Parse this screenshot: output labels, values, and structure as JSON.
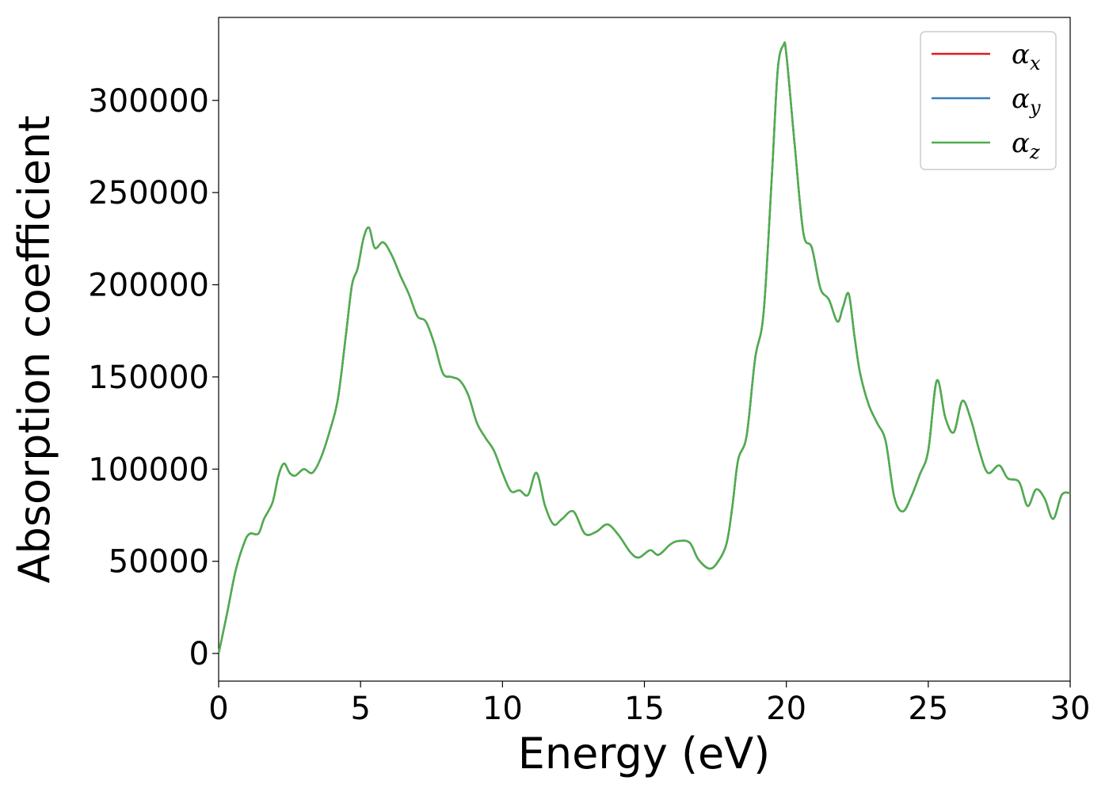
{
  "chart_data": {
    "type": "line",
    "title": "",
    "xlabel": "Energy (eV)",
    "ylabel": "Absorption coefficient",
    "xlim": [
      0,
      30
    ],
    "ylim": [
      -15000,
      345000
    ],
    "xticks": [
      0,
      5,
      10,
      15,
      20,
      25,
      30
    ],
    "yticks": [
      0,
      50000,
      100000,
      150000,
      200000,
      250000,
      300000
    ],
    "xtick_labels": [
      "0",
      "5",
      "10",
      "15",
      "20",
      "25",
      "30"
    ],
    "ytick_labels": [
      "0",
      "50000",
      "100000",
      "150000",
      "200000",
      "250000",
      "300000"
    ],
    "grid": false,
    "legend_position": "top-right",
    "series": [
      {
        "name": "α",
        "subscript": "x",
        "color": "#e41a1c",
        "line_ref": "shared"
      },
      {
        "name": "α",
        "subscript": "y",
        "color": "#377eb8",
        "line_ref": "shared"
      },
      {
        "name": "α",
        "subscript": "z",
        "color": "#4daf4a",
        "line_ref": "shared"
      }
    ],
    "x": [
      0,
      0.3,
      0.6,
      0.9,
      1.1,
      1.4,
      1.6,
      1.9,
      2.1,
      2.3,
      2.5,
      2.7,
      3.0,
      3.3,
      3.6,
      3.9,
      4.2,
      4.5,
      4.7,
      4.9,
      5.1,
      5.3,
      5.5,
      5.8,
      6.1,
      6.4,
      6.7,
      7.0,
      7.3,
      7.6,
      7.9,
      8.2,
      8.5,
      8.8,
      9.1,
      9.4,
      9.7,
      10.0,
      10.3,
      10.6,
      10.9,
      11.2,
      11.5,
      11.8,
      12.1,
      12.5,
      12.9,
      13.3,
      13.7,
      14.1,
      14.5,
      14.8,
      15.2,
      15.5,
      15.9,
      16.2,
      16.6,
      16.9,
      17.3,
      17.6,
      17.9,
      18.1,
      18.3,
      18.6,
      18.9,
      19.2,
      19.5,
      19.7,
      19.9,
      20.0,
      20.3,
      20.6,
      20.9,
      21.2,
      21.5,
      21.8,
      22.0,
      22.2,
      22.4,
      22.6,
      22.9,
      23.2,
      23.5,
      23.8,
      24.1,
      24.4,
      24.7,
      25.0,
      25.3,
      25.6,
      25.9,
      26.2,
      26.5,
      26.8,
      27.1,
      27.5,
      27.8,
      28.2,
      28.5,
      28.8,
      29.1,
      29.4,
      29.7,
      30.0
    ],
    "values": [
      0,
      22000,
      45000,
      60000,
      65000,
      65000,
      73000,
      82000,
      96000,
      103000,
      98000,
      96500,
      100000,
      98000,
      106000,
      120000,
      138000,
      175000,
      200000,
      209000,
      225000,
      231000,
      220000,
      223000,
      216000,
      205000,
      195000,
      183000,
      180000,
      168000,
      152000,
      150000,
      148000,
      140000,
      125000,
      117000,
      110000,
      98000,
      88000,
      88500,
      86000,
      98000,
      80000,
      70000,
      73000,
      77000,
      65000,
      66000,
      70000,
      64000,
      55000,
      52000,
      56000,
      53500,
      59000,
      61000,
      60000,
      51000,
      46000,
      50000,
      60000,
      80000,
      105000,
      118000,
      160000,
      185000,
      262000,
      317000,
      330000,
      325000,
      275000,
      228000,
      220000,
      198000,
      192000,
      180000,
      188000,
      195000,
      172000,
      152000,
      135000,
      125000,
      115000,
      85000,
      77000,
      85000,
      97000,
      110000,
      148000,
      128000,
      120000,
      137000,
      127000,
      110000,
      98000,
      102000,
      95000,
      93000,
      80000,
      89000,
      84000,
      73000,
      86000,
      87000
    ]
  }
}
